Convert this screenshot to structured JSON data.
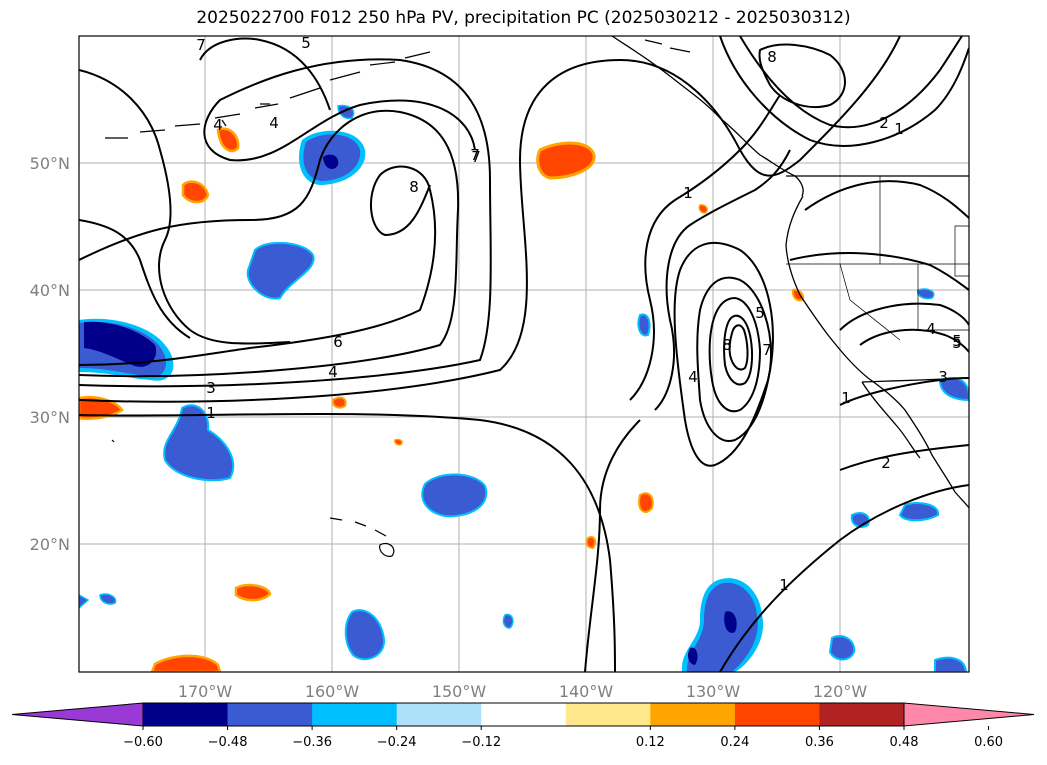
{
  "title": "2025022700 F012 250 hPa PV, precipitation PC (2025030212 - 2025030312)",
  "map": {
    "lon_range": [
      -180,
      -110
    ],
    "lat_range": [
      10,
      60
    ],
    "longitude_labels": [
      "170°W",
      "160°W",
      "150°W",
      "140°W",
      "130°W",
      "120°W"
    ],
    "latitude_labels": [
      "50°N",
      "40°N",
      "30°N",
      "20°N"
    ],
    "gridlines": true,
    "pv_contour_labels": [
      "7",
      "5",
      "4",
      "4",
      "7",
      "8",
      "1",
      "8",
      "2",
      "1",
      "6",
      "4",
      "3",
      "1",
      "7",
      "5",
      "4",
      "8",
      "7",
      "5",
      "1",
      "3",
      "2",
      "4",
      "5",
      "1"
    ]
  },
  "colorbar": {
    "ticks": [
      "−0.60",
      "−0.48",
      "−0.36",
      "−0.24",
      "−0.12",
      "0.12",
      "0.24",
      "0.36",
      "0.48",
      "0.60"
    ],
    "colors": [
      "#9a3ad6",
      "#00008b",
      "#3a5bd1",
      "#00bfff",
      "#aee0fa",
      "#ffffff",
      "#ffe98c",
      "#ffa500",
      "#ff4500",
      "#b22222",
      "#ff88aa"
    ]
  },
  "colors": {
    "neg_strong": "#00008b",
    "neg_mid": "#3a5bd1",
    "neg_light": "#00bfff",
    "pos_light": "#ffe98c",
    "pos_mid": "#ffa500",
    "pos_strong": "#ff4500"
  }
}
